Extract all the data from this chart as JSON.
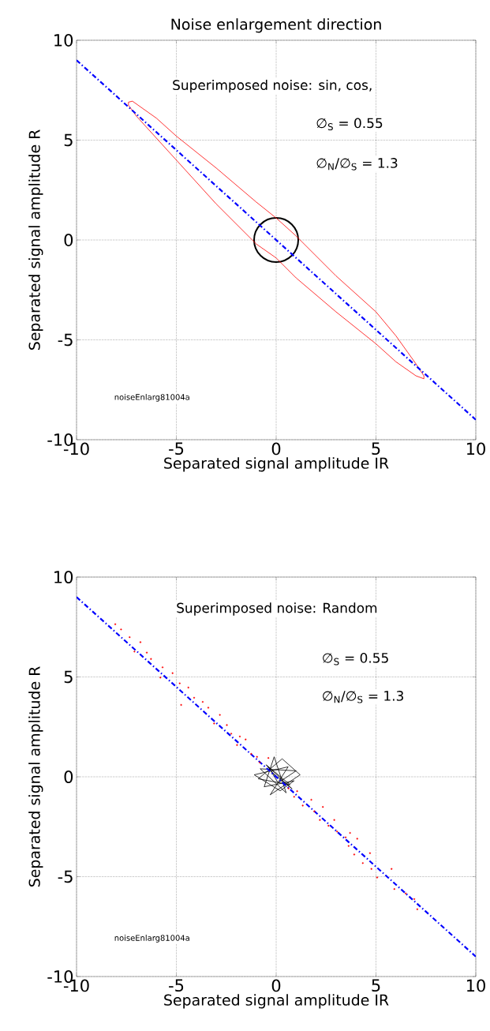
{
  "chart_data": [
    {
      "type": "line",
      "title": "Noise enlargement direction",
      "xlabel": "Separated signal amplitude IR",
      "ylabel": "Separated signal amplitude R",
      "xlim": [
        -10,
        10
      ],
      "ylim": [
        -10,
        10
      ],
      "xticks": [
        -10,
        -5,
        0,
        5,
        10
      ],
      "yticks": [
        -10,
        -5,
        0,
        5,
        10
      ],
      "grid": true,
      "marker": "none",
      "annotations": [
        "Superimposed noise: sin, cos,",
        "∅$_{S}$ = 0.55",
        "∅$_{N}$/∅$_{S}$ = 1.3",
        "noiseEnlarg81004a"
      ],
      "series": [
        {
          "color": "#ff0000",
          "line_style": "solid",
          "x": [
            -7.4,
            -7.2,
            -6,
            -5,
            -3,
            -1,
            0,
            1,
            3,
            5,
            6,
            7,
            7.4,
            7.4
          ],
          "values": [
            6.9,
            6.95,
            6.1,
            5.2,
            3.6,
            1.9,
            1.1,
            0.2,
            -1.8,
            -3.6,
            -4.8,
            -6.2,
            -6.8,
            -6.95
          ]
        },
        {
          "color": "#ff0000",
          "line_style": "solid",
          "x": [
            7.4,
            7.0,
            6,
            5,
            3,
            1,
            0,
            -1,
            -3,
            -5,
            -6,
            -7,
            -7.4,
            -7.4
          ],
          "values": [
            -6.95,
            -6.8,
            -6.1,
            -5.2,
            -3.6,
            -1.9,
            -0.9,
            -0.2,
            1.8,
            4.0,
            5.1,
            6.2,
            6.75,
            6.9
          ]
        },
        {
          "color": "#0000ff",
          "line_style": "dashdot",
          "x": [
            -10,
            10
          ],
          "values": [
            9,
            -9
          ]
        }
      ]
    },
    {
      "type": "scatter",
      "xlabel": "Separated signal amplitude IR",
      "ylabel": "Separated signal amplitude R",
      "xlim": [
        -10,
        10
      ],
      "ylim": [
        -10,
        10
      ],
      "xticks": [
        -10,
        -5,
        0,
        5,
        10
      ],
      "yticks": [
        -10,
        -5,
        0,
        5,
        10
      ],
      "grid": true,
      "marker": "circle",
      "annotations": [
        "Superimposed noise: Random",
        "∅$_{S}$ = 0.55",
        "∅$_{N}$/∅$_{S}$ = 1.3",
        "noiseEnlarg81004a"
      ],
      "series": [
        {
          "color": "#ff0000",
          "x": [
            -8.06,
            -7.77,
            -7.34,
            -6.8,
            -7.1,
            -6.48,
            -6.27,
            -5.69,
            -5.8,
            -5.19,
            -4.83,
            -4.4,
            -4.76,
            -4.11,
            -3.68,
            -3.4,
            -3.11,
            -2.82,
            -2.47,
            -2.25,
            -1.82,
            -1.53,
            -1.96,
            -1.25,
            -0.96,
            -0.82,
            -0.39,
            0.62,
            1.05,
            0.9,
            1.33,
            1.76,
            1.91,
            2.34,
            2.19,
            2.62,
            2.91,
            3.05,
            3.48,
            3.7,
            4.06,
            3.63,
            3.91,
            4.34,
            4.7,
            4.77,
            5.06,
            5.78,
            5.92,
            6.49,
            6.92,
            7.07
          ],
          "values": [
            7.64,
            7.38,
            6.99,
            6.74,
            6.27,
            6.22,
            5.9,
            5.48,
            4.97,
            5.19,
            4.68,
            4.47,
            3.6,
            3.96,
            3.75,
            3.46,
            2.67,
            3.1,
            2.59,
            2.16,
            2.02,
            1.87,
            1.59,
            1.15,
            1.0,
            0.72,
            0.94,
            -0.58,
            -0.72,
            -1.0,
            -1.44,
            -1.15,
            -1.73,
            -1.51,
            -2.16,
            -2.45,
            -2.16,
            -2.74,
            -3.03,
            -2.81,
            -3.1,
            -3.46,
            -3.89,
            -4.32,
            -3.82,
            -4.61,
            -5.04,
            -4.61,
            -5.62,
            -5.84,
            -6.12,
            -6.63
          ]
        },
        {
          "type": "line",
          "color": "#000000",
          "line_style": "solid",
          "marker": "none",
          "x": [
            0,
            -0.5,
            0.7,
            -0.9,
            0.3,
            1.2,
            -0.3,
            0.6,
            -1.1,
            0.2,
            0.9,
            -0.6,
            -0.1,
            0.5,
            -0.8,
            1.0,
            0.1,
            -0.4,
            0.8,
            -0.2
          ],
          "values": [
            0,
            0.6,
            -0.4,
            -0.1,
            0.9,
            0.1,
            -0.9,
            0.5,
            0.1,
            -0.7,
            -0.2,
            -0.5,
            1.0,
            -0.8,
            0.4,
            0.3,
            -0.3,
            0.5,
            -0.6,
            0.2
          ]
        },
        {
          "type": "line",
          "color": "#0000ff",
          "line_style": "dashdot",
          "marker": "none",
          "x": [
            -10,
            10
          ],
          "values": [
            9,
            -9
          ]
        }
      ]
    }
  ]
}
